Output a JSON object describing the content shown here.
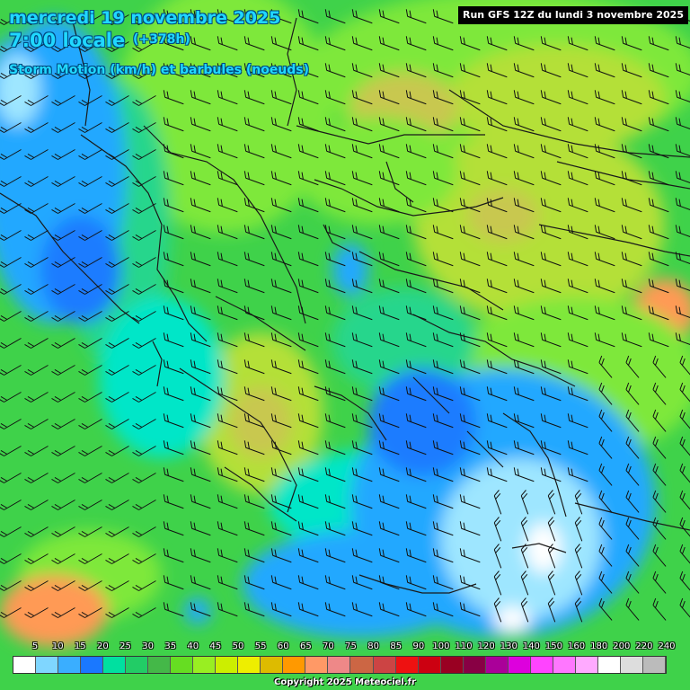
{
  "header": {
    "date": "mercredi 19 novembre 2025",
    "time": "7:00 locale",
    "forecast_hour": "(+378h)",
    "subtitle": "Storm Motion (km/h) et barbules (noeuds)",
    "run": "Run GFS 12Z du lundi 3 novembre 2025"
  },
  "legend": {
    "labels": [
      "5",
      "10",
      "15",
      "20",
      "25",
      "30",
      "35",
      "40",
      "45",
      "50",
      "55",
      "60",
      "65",
      "70",
      "75",
      "80",
      "85",
      "90",
      "100",
      "110",
      "120",
      "130",
      "140",
      "150",
      "160",
      "180",
      "200",
      "220",
      "240"
    ],
    "colors": [
      "#ffffff",
      "#7fd6ff",
      "#3aaeff",
      "#1a78ff",
      "#00e0a0",
      "#22cc66",
      "#44b848",
      "#66dd22",
      "#99ee22",
      "#ccee00",
      "#eeee00",
      "#ddbb00",
      "#ff9900",
      "#ff9966",
      "#ee8888",
      "#cc6644",
      "#cc4444",
      "#ee1111",
      "#cc0011",
      "#990022",
      "#880044",
      "#aa0099",
      "#dd00dd",
      "#ff44ff",
      "#ff77ff",
      "#ffaaff",
      "#ffffff",
      "#dddddd",
      "#bbbbbb"
    ]
  },
  "map": {
    "background_color": "#3fd24a",
    "field_colors": {
      "light_green": "#7ee83a",
      "yellow_green": "#b4e038",
      "olive": "#c8c850",
      "teal_green": "#26d68c",
      "cyan": "#00e6c8",
      "blue": "#22a8ff",
      "deep_blue": "#1a7cff",
      "light_blue": "#9ee6ff",
      "white": "#ffffff",
      "orange": "#ff9a55"
    },
    "border_color": "#1a1a1a"
  },
  "copyright": "Copyright 2025 Meteociel.fr"
}
